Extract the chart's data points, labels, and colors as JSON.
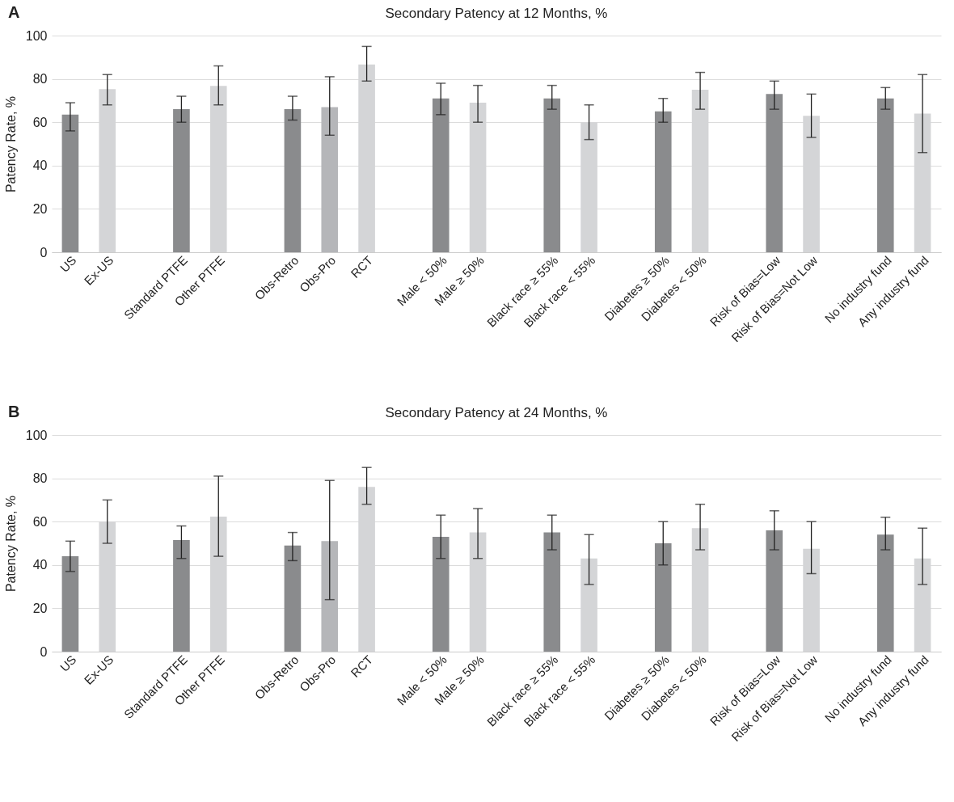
{
  "chart_data": [
    {
      "type": "bar",
      "title": "Secondary Patency at 12 Months, %",
      "ylabel": "Patency Rate, %",
      "annotations": [
        "A"
      ],
      "categories": [
        "US",
        "Ex-US",
        null,
        "Standard PTFE",
        "Other PTFE",
        null,
        "Obs-Retro",
        "Obs-Pro",
        "RCT",
        null,
        "Male < 50%",
        "Male ≥ 50%",
        null,
        "Black race ≥ 55%",
        "Black race < 55%",
        null,
        "Diabetes ≥ 50%",
        "Diabetes < 50%",
        null,
        "Risk of Bias=Low",
        "Risk of Bias=Not Low",
        null,
        "No industry fund",
        "Any industry fund"
      ],
      "values": [
        63.5,
        75.3,
        null,
        66,
        76.8,
        null,
        66,
        67,
        86.7,
        null,
        71,
        69,
        null,
        71,
        60,
        null,
        65,
        75,
        null,
        73,
        63,
        null,
        71,
        64
      ],
      "errors": [
        [
          56,
          69
        ],
        [
          68,
          82
        ],
        null,
        [
          60,
          72
        ],
        [
          68,
          86
        ],
        null,
        [
          61,
          72
        ],
        [
          54,
          81
        ],
        [
          79,
          95
        ],
        null,
        [
          63.5,
          78
        ],
        [
          60,
          77
        ],
        null,
        [
          66,
          77
        ],
        [
          52,
          68
        ],
        null,
        [
          60,
          71
        ],
        [
          66,
          83
        ],
        null,
        [
          66,
          79
        ],
        [
          53,
          73
        ],
        null,
        [
          66,
          76
        ],
        [
          46,
          82
        ]
      ],
      "colors": [
        "#8a8b8d",
        "#d4d5d7",
        null,
        "#8a8b8d",
        "#d4d5d7",
        null,
        "#8a8b8d",
        "#b5b6b9",
        "#d4d5d7",
        null,
        "#8a8b8d",
        "#d4d5d7",
        null,
        "#8a8b8d",
        "#d4d5d7",
        null,
        "#8a8b8d",
        "#d4d5d7",
        null,
        "#8a8b8d",
        "#d4d5d7",
        null,
        "#8a8b8d",
        "#d4d5d7"
      ],
      "ylim": [
        0,
        100
      ],
      "yticks": [
        0,
        20,
        40,
        60,
        80,
        100
      ],
      "grid": "y"
    },
    {
      "type": "bar",
      "title": "Secondary Patency at 24 Months, %",
      "ylabel": "Patency Rate, %",
      "annotations": [
        "B"
      ],
      "categories": [
        "US",
        "Ex-US",
        null,
        "Standard PTFE",
        "Other PTFE",
        null,
        "Obs-Retro",
        "Obs-Pro",
        "RCT",
        null,
        "Male < 50%",
        "Male ≥ 50%",
        null,
        "Black race ≥ 55%",
        "Black race < 55%",
        null,
        "Diabetes ≥ 50%",
        "Diabetes < 50%",
        null,
        "Risk of Bias=Low",
        "Risk of Bias=Not Low",
        null,
        "No industry fund",
        "Any industry fund"
      ],
      "values": [
        44,
        60,
        null,
        51.5,
        62.3,
        null,
        49,
        51,
        76,
        null,
        53,
        55,
        null,
        55,
        43,
        null,
        50,
        57,
        null,
        56,
        47.5,
        null,
        54,
        43
      ],
      "errors": [
        [
          37,
          51
        ],
        [
          50,
          70
        ],
        null,
        [
          43,
          58
        ],
        [
          44,
          81
        ],
        null,
        [
          42,
          55
        ],
        [
          24,
          79
        ],
        [
          68,
          85
        ],
        null,
        [
          43,
          63
        ],
        [
          43,
          66
        ],
        null,
        [
          47,
          63
        ],
        [
          31,
          54
        ],
        null,
        [
          40,
          60
        ],
        [
          47,
          68
        ],
        null,
        [
          47,
          65
        ],
        [
          36,
          60
        ],
        null,
        [
          47,
          62
        ],
        [
          31,
          57
        ]
      ],
      "colors": [
        "#8a8b8d",
        "#d4d5d7",
        null,
        "#8a8b8d",
        "#d4d5d7",
        null,
        "#8a8b8d",
        "#b5b6b9",
        "#d4d5d7",
        null,
        "#8a8b8d",
        "#d4d5d7",
        null,
        "#8a8b8d",
        "#d4d5d7",
        null,
        "#8a8b8d",
        "#d4d5d7",
        null,
        "#8a8b8d",
        "#d4d5d7",
        null,
        "#8a8b8d",
        "#d4d5d7"
      ],
      "ylim": [
        0,
        100
      ],
      "yticks": [
        0,
        20,
        40,
        60,
        80,
        100
      ],
      "grid": "y"
    }
  ]
}
